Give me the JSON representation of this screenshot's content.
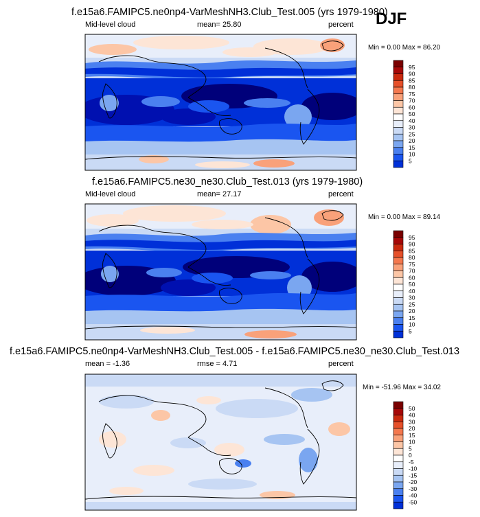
{
  "season": "DJF",
  "colors": {
    "level_scale": [
      "#00007a",
      "#0010b0",
      "#0030d8",
      "#1a55f0",
      "#4a80f0",
      "#7aa6f0",
      "#a6c4f2",
      "#cadaf5",
      "#e8eefa",
      "#ffffff",
      "#fde5d6",
      "#fcc6a6",
      "#f9a17a",
      "#f4784e",
      "#e6502a",
      "#c9290e",
      "#a60808",
      "#7a0000"
    ],
    "diff_scale": [
      "#00007a",
      "#0010b0",
      "#0030d8",
      "#1a55f0",
      "#4a80f0",
      "#7aa6f0",
      "#a6c4f2",
      "#cadaf5",
      "#e8eefa",
      "#ffffff",
      "#fde5d6",
      "#fcc6a6",
      "#f9a17a",
      "#f4784e",
      "#e6502a",
      "#c9290e",
      "#a60808",
      "#7a0000"
    ]
  },
  "chart_data": [
    {
      "type": "heatmap",
      "title": "f.e15a6.FAMIPC5.ne0np4-VarMeshNH3.Club_Test.005 (yrs 1979-1980)",
      "variable": "Mid-level cloud",
      "mean_text": "mean=  25.80",
      "units": "percent",
      "min": 0.0,
      "max": 86.2,
      "minmax_text": "Min =  0.00 Max =  86.20",
      "colorbar_levels": [
        5,
        10,
        15,
        20,
        25,
        30,
        40,
        50,
        60,
        70,
        75,
        80,
        85,
        90,
        95
      ],
      "colorbar_labels": [
        "5",
        "10",
        "15",
        "20",
        "25",
        "30",
        "40",
        "50",
        "60",
        "70",
        "75",
        "80",
        "85",
        "90",
        "95"
      ]
    },
    {
      "type": "heatmap",
      "title": "f.e15a6.FAMIPC5.ne30_ne30.Club_Test.013 (yrs 1979-1980)",
      "variable": "Mid-level cloud",
      "mean_text": "mean=  27.17",
      "units": "percent",
      "min": 0.0,
      "max": 89.14,
      "minmax_text": "Min =  0.00 Max =  89.14",
      "colorbar_levels": [
        5,
        10,
        15,
        20,
        25,
        30,
        40,
        50,
        60,
        70,
        75,
        80,
        85,
        90,
        95
      ],
      "colorbar_labels": [
        "5",
        "10",
        "15",
        "20",
        "25",
        "30",
        "40",
        "50",
        "60",
        "70",
        "75",
        "80",
        "85",
        "90",
        "95"
      ]
    },
    {
      "type": "heatmap",
      "title": "f.e15a6.FAMIPC5.ne0np4-VarMeshNH3.Club_Test.005 - f.e15a6.FAMIPC5.ne30_ne30.Club_Test.013",
      "mean_text": "mean = -1.36",
      "rmse_text": "rmse =  4.71",
      "units": "percent",
      "min": -51.96,
      "max": 34.02,
      "minmax_text": "Min = -51.96 Max =  34.02",
      "colorbar_levels": [
        -50,
        -40,
        -30,
        -20,
        -15,
        -10,
        -5,
        0,
        5,
        10,
        15,
        20,
        30,
        40,
        50
      ],
      "colorbar_labels": [
        "-50",
        "-40",
        "-30",
        "-20",
        "-15",
        "-10",
        "-5",
        "0",
        "5",
        "10",
        "15",
        "20",
        "30",
        "40",
        "50"
      ]
    }
  ]
}
